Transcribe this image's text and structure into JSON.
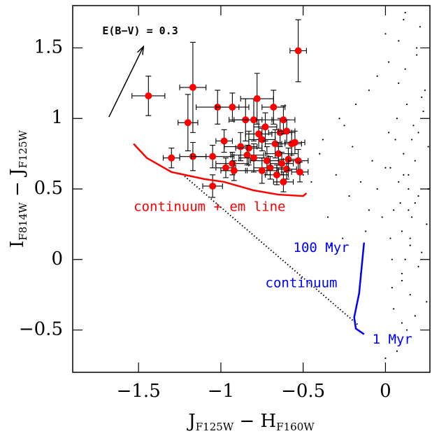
{
  "chart_data": {
    "type": "scatter",
    "xlim": [
      -1.9,
      0.27
    ],
    "ylim": [
      -0.8,
      1.8
    ],
    "xticks": [
      {
        "value": -1.5,
        "label": "−1.5"
      },
      {
        "value": -1,
        "label": "−1"
      },
      {
        "value": -0.5,
        "label": "−0.5"
      },
      0
    ],
    "yticks": [
      {
        "value": -0.5,
        "label": "−0.5"
      },
      0,
      0.5,
      1,
      1.5
    ],
    "xlabel": [
      {
        "text": "J"
      },
      {
        "text": "F125W",
        "sub": true
      },
      {
        "text": " − H"
      },
      {
        "text": "F160W",
        "sub": true
      }
    ],
    "ylabel": [
      {
        "text": "I"
      },
      {
        "text": "F814W",
        "sub": true
      },
      {
        "text": " − J"
      },
      {
        "text": "F125W",
        "sub": true
      }
    ],
    "series": [
      {
        "kind": "dots",
        "color": "#000000",
        "x": [
          0.1,
          0.05,
          0.15,
          0.2,
          0.08,
          0.12,
          -0.02,
          0.18,
          0.25,
          0.0,
          0.1,
          0.06,
          0.14,
          0.22,
          -0.05,
          0.03,
          0.17,
          0.09,
          0.11,
          0.26,
          -0.1,
          0.04,
          0.13,
          0.2,
          0.07,
          -0.08,
          0.16,
          0.24,
          0.02,
          0.12,
          -0.15,
          0.05,
          0.19,
          0.1,
          -0.2,
          0.08,
          0.15,
          0.23,
          -0.12,
          0.0,
          0.11,
          0.18,
          -0.25,
          0.06,
          0.14,
          -0.3,
          0.21,
          0.09,
          -0.18,
          0.02,
          0.16,
          -0.35,
          0.12,
          0.25,
          -0.4,
          0.07,
          -0.22,
          0.19,
          -0.28,
          0.1,
          -0.45,
          0.03,
          0.15,
          -0.05,
          0.2,
          -0.33,
          0.08,
          0.13,
          -0.15,
          0.26,
          -0.5,
          0.04,
          -0.1,
          0.18,
          0.11,
          -0.38,
          0.22,
          0.0,
          -0.26,
          0.14
        ],
        "values": [
          0.2,
          0.35,
          0.1,
          0.45,
          0.55,
          0.0,
          0.3,
          0.7,
          0.25,
          0.65,
          -0.1,
          0.85,
          0.6,
          0.05,
          0.5,
          0.15,
          0.95,
          0.4,
          0.75,
          0.8,
          0.35,
          -0.2,
          1.1,
          -0.05,
          1.0,
          0.7,
          0.3,
          1.2,
          0.9,
          1.35,
          0.55,
          -0.35,
          1.5,
          -0.45,
          0.8,
          1.25,
          -0.25,
          1.05,
          0.2,
          1.6,
          0.6,
          -0.4,
          0.95,
          -0.55,
          0.5,
          0.6,
          1.65,
          -0.6,
          1.1,
          1.4,
          0.85,
          0.3,
          1.75,
          -0.3,
          0.75,
          -0.65,
          0.45,
          1.45,
          1.0,
          -0.15,
          0.55,
          0.65,
          0.15,
          1.3,
          0.9,
          0.1,
          1.55,
          -0.5,
          -0.1,
          0.5,
          0.6,
          0.0,
          1.2,
          0.4,
          1.7,
          0.85,
          1.15,
          -0.7,
          0.15,
          0.35
        ]
      },
      {
        "kind": "errorbars",
        "color": "#ff0000",
        "x": [
          -1.44,
          -1.17,
          -1.2,
          -1.3,
          -1.17,
          -1.02,
          -0.98,
          -1.05,
          -1.05,
          -0.97,
          -0.93,
          -0.93,
          -0.92,
          -0.88,
          -0.85,
          -0.8,
          -0.78,
          -0.83,
          -0.84,
          -0.8,
          -0.77,
          -0.75,
          -0.73,
          -0.72,
          -0.7,
          -0.68,
          -0.67,
          -0.65,
          -0.64,
          -0.63,
          -0.62,
          -0.6,
          -0.6,
          -0.59,
          -0.57,
          -0.55,
          -0.53,
          -0.52,
          -0.62,
          -0.66,
          -0.53,
          -0.75
        ],
        "values": [
          1.16,
          1.22,
          0.97,
          0.72,
          0.73,
          1.08,
          0.84,
          0.73,
          0.52,
          0.65,
          1.08,
          0.68,
          0.63,
          0.8,
          0.99,
          0.99,
          1.14,
          0.79,
          0.74,
          0.72,
          0.89,
          0.85,
          0.94,
          0.7,
          0.65,
          1.08,
          0.82,
          0.75,
          0.9,
          0.68,
          0.99,
          0.91,
          0.64,
          0.71,
          0.82,
          0.83,
          0.7,
          0.62,
          0.55,
          0.6,
          1.48,
          0.63
        ],
        "xerr": [
          0.1,
          0.08,
          0.06,
          0.05,
          0.08,
          0.13,
          0.05,
          0.13,
          0.06,
          0.06,
          0.1,
          0.1,
          0.08,
          0.1,
          0.1,
          0.12,
          0.1,
          0.08,
          0.1,
          0.09,
          0.08,
          0.08,
          0.07,
          0.1,
          0.1,
          0.07,
          0.06,
          0.08,
          0.07,
          0.07,
          0.07,
          0.05,
          0.06,
          0.06,
          0.06,
          0.06,
          0.06,
          0.05,
          0.06,
          0.07,
          0.05,
          0.1
        ],
        "yerr": [
          0.14,
          0.32,
          0.2,
          0.07,
          0.1,
          0.12,
          0.08,
          0.08,
          0.08,
          0.07,
          0.1,
          0.08,
          0.07,
          0.1,
          0.15,
          0.15,
          0.18,
          0.12,
          0.07,
          0.1,
          0.1,
          0.08,
          0.1,
          0.1,
          0.08,
          0.12,
          0.1,
          0.08,
          0.1,
          0.08,
          0.1,
          0.08,
          0.07,
          0.08,
          0.08,
          0.08,
          0.08,
          0.07,
          0.07,
          0.07,
          0.22,
          0.09
        ]
      },
      {
        "kind": "line",
        "color": "#ff0000",
        "x": [
          -1.53,
          -1.45,
          -1.3,
          -1.1,
          -0.98,
          -0.8,
          -0.65,
          -0.5,
          -0.48
        ],
        "values": [
          0.82,
          0.72,
          0.62,
          0.57,
          0.55,
          0.49,
          0.46,
          0.45,
          0.47
        ]
      },
      {
        "kind": "line",
        "dotted": true,
        "color": "#000000",
        "x": [
          -1.22,
          -0.17
        ],
        "values": [
          0.59,
          -0.46
        ]
      },
      {
        "kind": "line",
        "color": "#0000ff",
        "x": [
          -0.13,
          -0.14,
          -0.16,
          -0.19,
          -0.18,
          -0.13
        ],
        "values": [
          0.12,
          0.0,
          -0.24,
          -0.41,
          -0.49,
          -0.53
        ]
      }
    ],
    "arrow": {
      "x": [
        -1.68,
        -1.47
      ],
      "values": [
        1.01,
        1.51
      ],
      "label": "E(B−V) = 0.3",
      "label_x": -1.72,
      "label_y": 1.62
    },
    "annotations": [
      {
        "text": "continuum + em line",
        "x": -1.53,
        "y": 0.37,
        "color": "#ff0000"
      },
      {
        "text": "100 Myr",
        "x": -0.56,
        "y": 0.08,
        "color": "#0000ff"
      },
      {
        "text": "continuum",
        "x": -0.73,
        "y": -0.17,
        "color": "#0000ff"
      },
      {
        "text": "1 Myr",
        "x": -0.08,
        "y": -0.57,
        "color": "#0000ff"
      }
    ]
  }
}
